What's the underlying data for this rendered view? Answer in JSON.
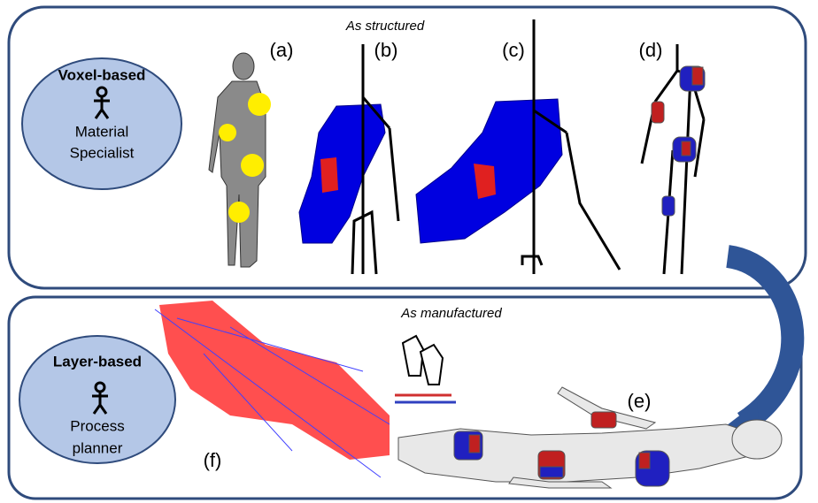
{
  "panels": [
    {
      "title": "As structured",
      "role": {
        "method": "Voxel-based",
        "actor": [
          "Material",
          "Specialist"
        ]
      },
      "labels": [
        "(a)",
        "(b)",
        "(c)",
        "(d)"
      ]
    },
    {
      "title": "As manufactured",
      "role": {
        "method": "Layer-based",
        "actor": [
          "Process",
          "planner"
        ]
      },
      "labels": [
        "(e)",
        "(f)"
      ]
    }
  ]
}
